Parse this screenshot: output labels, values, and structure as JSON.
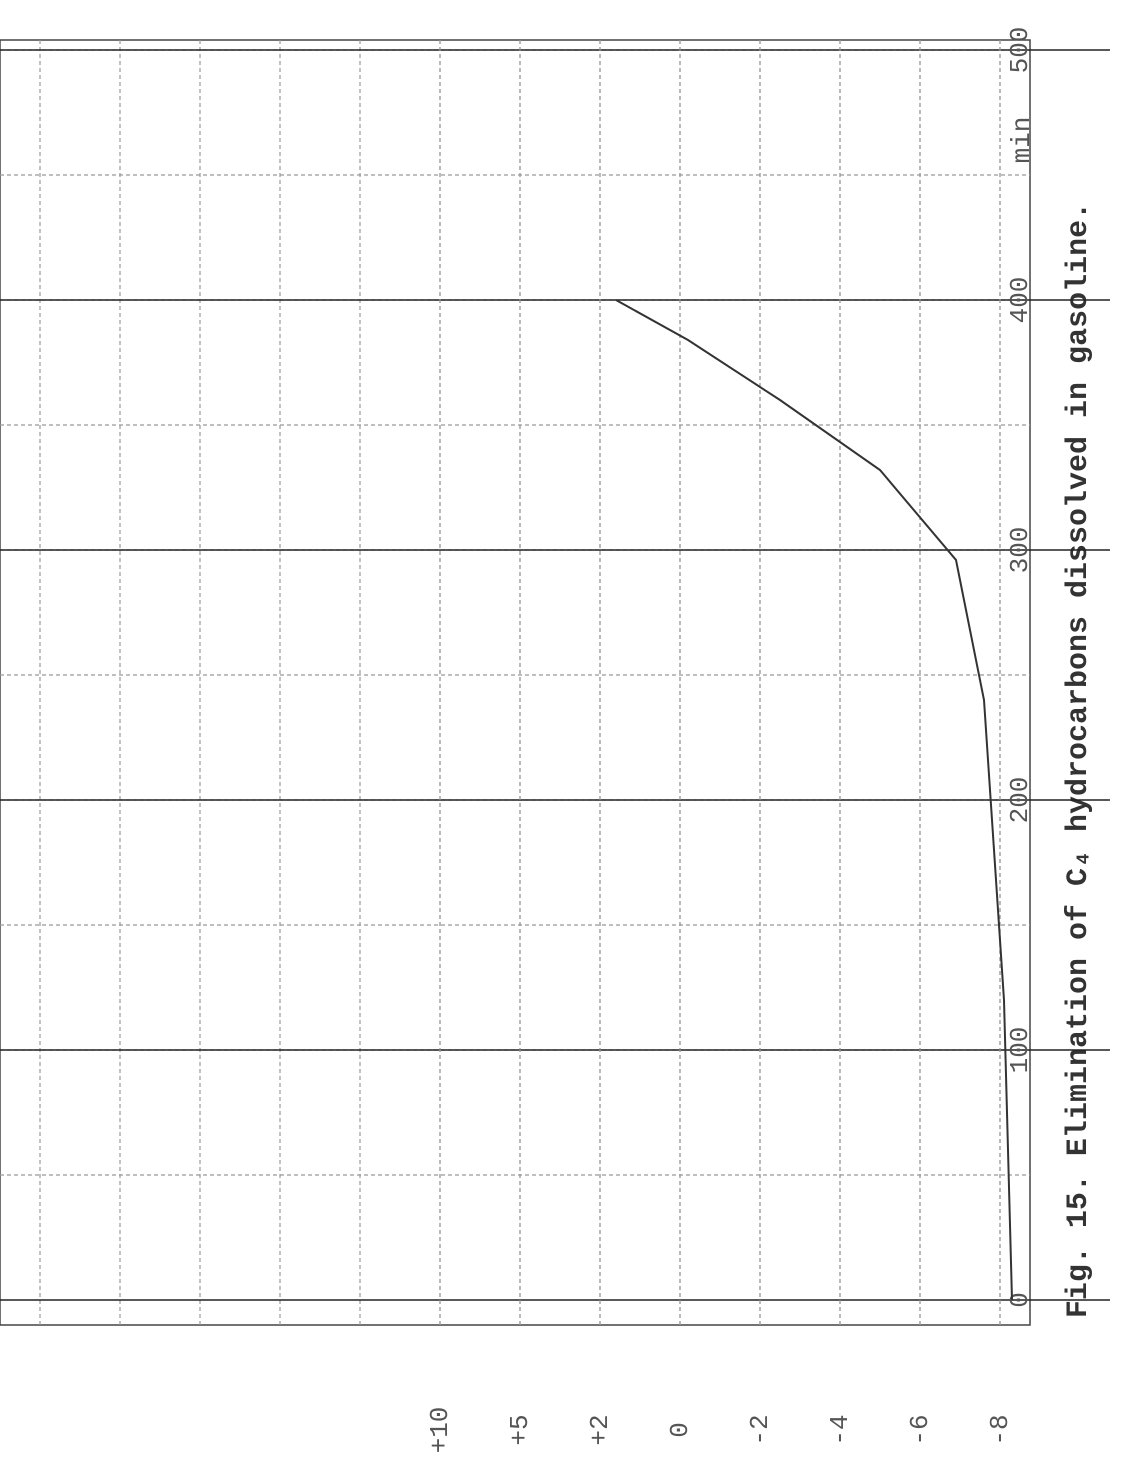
{
  "chart_data": {
    "type": "line",
    "title": "Fig. 15. Elimination of C₄ hydrocarbons dissolved in gasoline.",
    "x_label": "min",
    "xlim": [
      0,
      500
    ],
    "xticks": [
      0,
      100,
      200,
      300,
      400,
      500
    ],
    "yticks": [
      {
        "value": 10,
        "label": "+10"
      },
      {
        "value": 5,
        "label": "+5"
      },
      {
        "value": 2,
        "label": "+2"
      },
      0,
      -2,
      -4,
      -6,
      -8
    ],
    "grid": true,
    "series": [
      {
        "color": "#333333",
        "x": [
          0,
          120,
          240,
          296,
          332,
          360,
          384,
          400
        ],
        "values": [
          -8.3,
          -8.1,
          -7.6,
          -6.9,
          -5.0,
          -2.5,
          -0.2,
          1.6
        ]
      }
    ]
  }
}
